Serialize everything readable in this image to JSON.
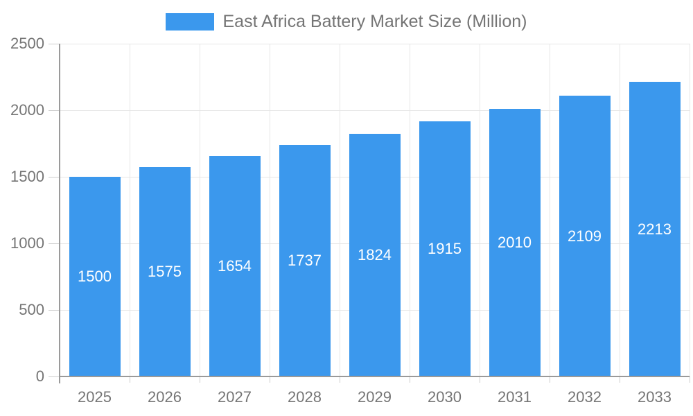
{
  "chart_data": {
    "type": "bar",
    "title": "East Africa Battery Market Size (Million)",
    "categories": [
      "2025",
      "2026",
      "2027",
      "2028",
      "2029",
      "2030",
      "2031",
      "2032",
      "2033"
    ],
    "values": [
      1500,
      1575,
      1654,
      1737,
      1824,
      1915,
      2010,
      2109,
      2213
    ],
    "xlabel": "",
    "ylabel": "",
    "ylim": [
      0,
      2500
    ],
    "yticks": [
      0,
      500,
      1000,
      1500,
      2000,
      2500
    ],
    "grid": true,
    "legend_position": "top-center",
    "bar_labels_inside": true,
    "colors": {
      "bar": "#3b98ed",
      "grid": "#e6e6e6",
      "axis": "#9a9a9a",
      "tick": "#cccccc",
      "text": "#757575",
      "bar_label": "#ffffff"
    }
  }
}
